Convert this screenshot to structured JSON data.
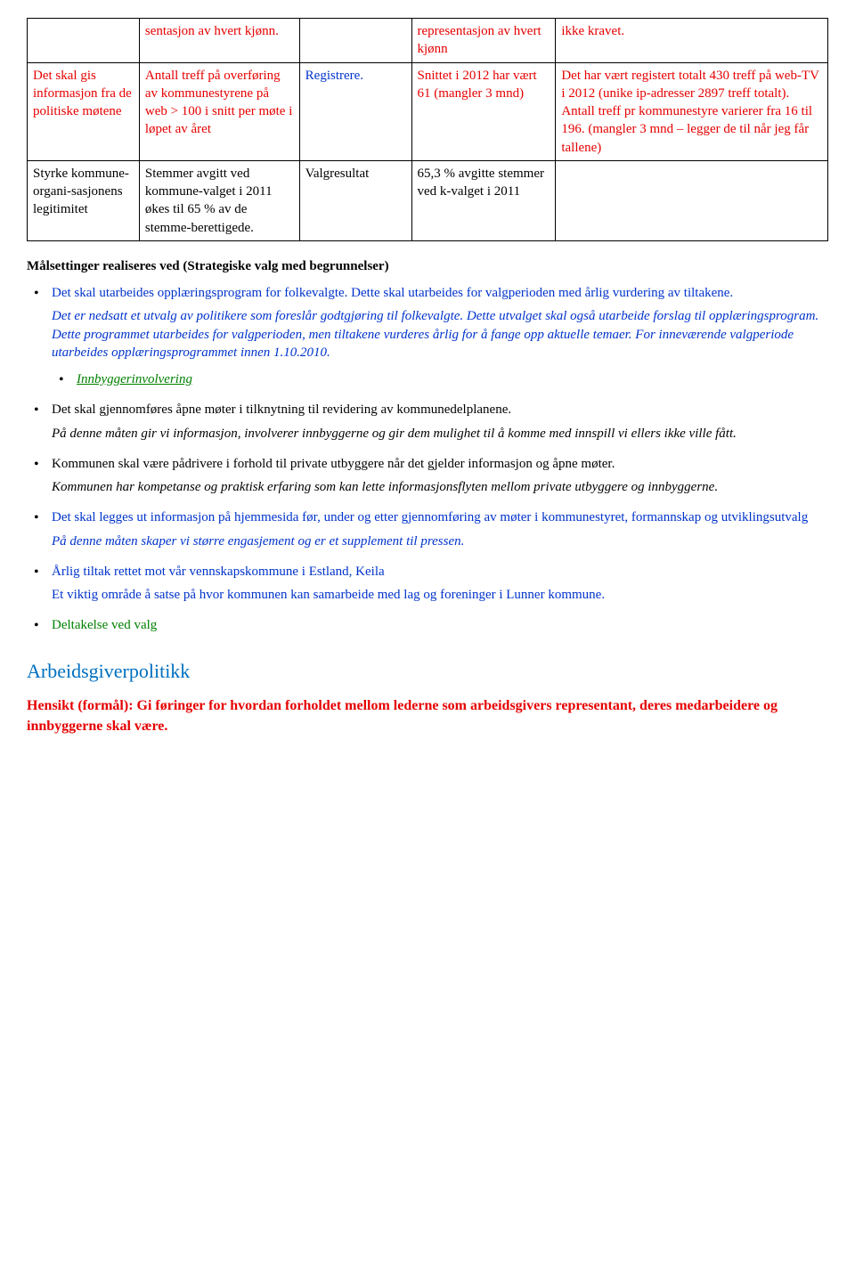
{
  "table": {
    "columns_count": 5,
    "col_widths_pct": [
      14,
      20,
      14,
      18,
      34
    ],
    "rows": [
      {
        "c0": "",
        "c1": "sentasjon av hvert kjønn.",
        "c2": "",
        "c3": "representasjon av hvert kjønn",
        "c4": "ikke kravet.",
        "c0_class": "",
        "c1_class": "red",
        "c2_class": "",
        "c3_class": "red",
        "c4_class": "red"
      },
      {
        "c0": "Det skal gis informasjon fra de politiske møtene",
        "c1": "Antall treff på overføring av kommunestyrene på web > 100 i snitt per møte i løpet av året",
        "c2": "Registrere.",
        "c3": "Snittet i 2012 har vært 61 (mangler 3 mnd)",
        "c4": "Det har vært registert totalt 430 treff på web-TV i 2012 (unike ip-adresser 2897 treff totalt). Antall treff pr kommunestyre varierer fra 16 til 196. (mangler 3 mnd – legger de til når jeg får tallene)",
        "c0_class": "red",
        "c1_class": "red",
        "c2_class": "blue",
        "c3_class": "red",
        "c4_class": "red"
      },
      {
        "c0": "Styrke kommune-organi-sasjonens legitimitet",
        "c1": "Stemmer avgitt ved kommune-valget i 2011 økes til 65 % av de stemme-berettigede.",
        "c2": "Valgresultat",
        "c3": "65,3 % avgitte stemmer ved k-valget i 2011",
        "c4": "",
        "c0_class": "",
        "c1_class": "",
        "c2_class": "",
        "c3_class": "",
        "c4_class": ""
      }
    ]
  },
  "sectionHeading": "Målsettinger realiseres ved (Strategiske valg med begrunnelser)",
  "bullets": [
    {
      "main": "Det skal utarbeides opplæringsprogram for folkevalgte. Dette skal utarbeides for valgperioden med årlig vurdering av tiltakene.",
      "main_class": "blue",
      "sub": "Det er nedsatt et utvalg av politikere som foreslår godtgjøring til folkevalgte.  Dette utvalget skal også utarbeide forslag til opplæringsprogram.  Dette programmet utarbeides for valgperioden, men tiltakene vurderes årlig for å fange opp aktuelle temaer.  For inneværende valgperiode utarbeides opplæringsprogrammet innen 1.10.2010.",
      "sub_class": "blue italic",
      "extra_bullet": "Innbyggerinvolvering",
      "extra_bullet_class": "green italic underline"
    },
    {
      "main": "Det skal gjennomføres åpne møter i tilknytning til revidering av kommunedelplanene.",
      "main_class": "",
      "sub": "På denne måten gir vi informasjon, involverer innbyggerne og gir dem mulighet til å komme med innspill vi ellers ikke ville fått.",
      "sub_class": "italic"
    },
    {
      "main": "Kommunen skal være pådrivere i forhold til private utbyggere når det gjelder informasjon og åpne møter.",
      "main_class": "",
      "sub": "Kommunen har kompetanse og praktisk erfaring som kan lette informasjonsflyten mellom private utbyggere og innbyggerne.",
      "sub_class": "italic"
    },
    {
      "main": "Det skal legges ut informasjon på hjemmesida før, under og etter gjennomføring av møter i kommunestyret, formannskap og utviklingsutvalg",
      "main_class": "blue",
      "sub": "På denne måten skaper vi større engasjement og er et supplement til pressen.",
      "sub_class": "blue italic"
    },
    {
      "main": "Årlig tiltak rettet mot vår vennskapskommune i Estland, Keila",
      "main_class": "blue",
      "sub": "Et viktig område å satse på hvor kommunen kan samarbeide med lag og foreninger i Lunner kommune.",
      "sub_class": "blue"
    },
    {
      "main": "Deltakelse ved valg",
      "main_class": "green",
      "sub": "",
      "sub_class": ""
    }
  ],
  "arbeidsgiverHeading": "Arbeidsgiverpolitikk",
  "hensikt": "Hensikt (formål): Gi føringer for hvordan forholdet mellom lederne som arbeidsgivers representant, deres medarbeidere og innbyggerne skal være."
}
